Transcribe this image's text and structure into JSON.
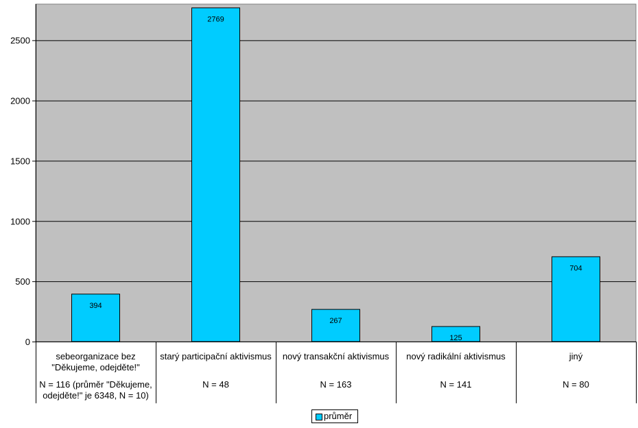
{
  "chart_data": {
    "type": "bar",
    "categories": [
      "sebeorganizace bez \"Děkujeme, odejděte!\"",
      "starý participační aktivismus",
      "nový transakční aktivismus",
      "nový radikální aktivismus",
      "jiný"
    ],
    "category_notes": [
      "N = 116 (průměr \"Děkujeme, odejděte!\" je 6348, N = 10)",
      "N = 48",
      "N = 163",
      "N = 141",
      "N = 80"
    ],
    "series": [
      {
        "name": "průměr",
        "values": [
          394,
          2769,
          267,
          125,
          704
        ]
      }
    ],
    "data_labels": [
      "394",
      "2769",
      "267",
      "125",
      "704"
    ],
    "y_ticks": [
      0,
      500,
      1000,
      1500,
      2000,
      2500
    ],
    "ylim": [
      0,
      2800
    ],
    "grid": true,
    "legend_position": "bottom-center",
    "colors": {
      "bar": "#00CCFF",
      "plot_background": "#C0C0C0",
      "gridline": "#000000"
    }
  }
}
